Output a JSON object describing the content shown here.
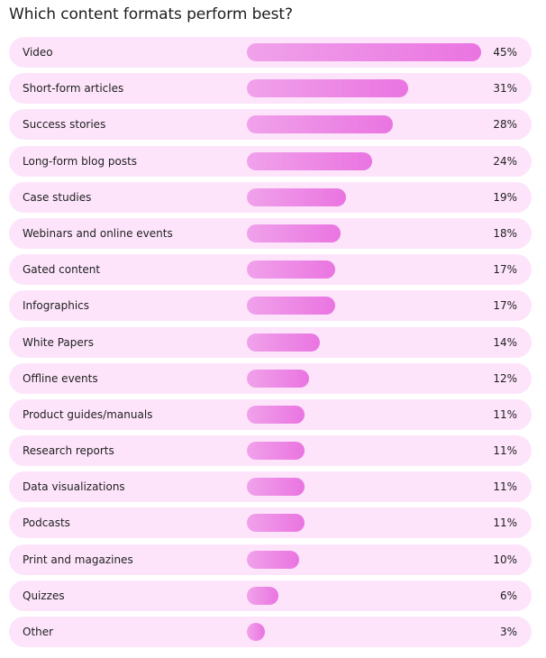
{
  "title": "Which content formats perform best?",
  "colors": {
    "row_background": "#fde4fb",
    "bar_start": "#f0a2ea",
    "bar_end": "#ea74e1"
  },
  "chart_data": {
    "type": "bar",
    "orientation": "horizontal",
    "title": "Which content formats perform best?",
    "xlabel": "",
    "ylabel": "",
    "xlim": [
      0,
      45
    ],
    "grid": false,
    "categories": [
      "Video",
      "Short-form articles",
      "Success stories",
      "Long-form blog posts",
      "Case studies",
      "Webinars and online events",
      "Gated content",
      "Infographics",
      "White Papers",
      "Offline events",
      "Product guides/manuals",
      "Research reports",
      "Data visualizations",
      "Podcasts",
      "Print and magazines",
      "Quizzes",
      "Other"
    ],
    "values": [
      45,
      31,
      28,
      24,
      19,
      18,
      17,
      17,
      14,
      12,
      11,
      11,
      11,
      11,
      10,
      6,
      3
    ],
    "value_labels": [
      "45%",
      "31%",
      "28%",
      "24%",
      "19%",
      "18%",
      "17%",
      "17%",
      "14%",
      "12%",
      "11%",
      "11%",
      "11%",
      "11%",
      "10%",
      "6%",
      "3%"
    ],
    "unit": "%"
  }
}
